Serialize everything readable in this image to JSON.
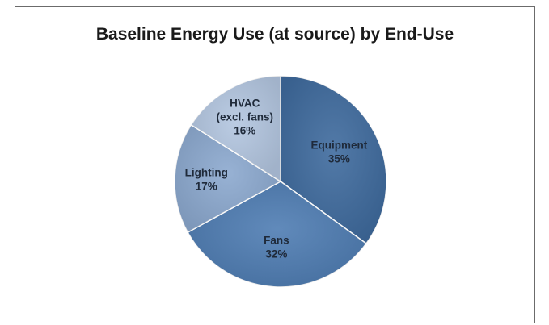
{
  "chart_data": {
    "type": "pie",
    "title": "Baseline Energy Use (at source) by End-Use",
    "slices": [
      {
        "label_lines": [
          "Equipment",
          "35%"
        ],
        "value": 35,
        "color": "#3f6b9e"
      },
      {
        "label_lines": [
          "Fans",
          "32%"
        ],
        "value": 32,
        "color": "#4f7db3"
      },
      {
        "label_lines": [
          "Lighting",
          "17%"
        ],
        "value": 17,
        "color": "#8ca9cf"
      },
      {
        "label_lines": [
          "HVAC",
          "(excl. fans)",
          "16%"
        ],
        "value": 16,
        "color": "#b3c6e0"
      }
    ]
  }
}
